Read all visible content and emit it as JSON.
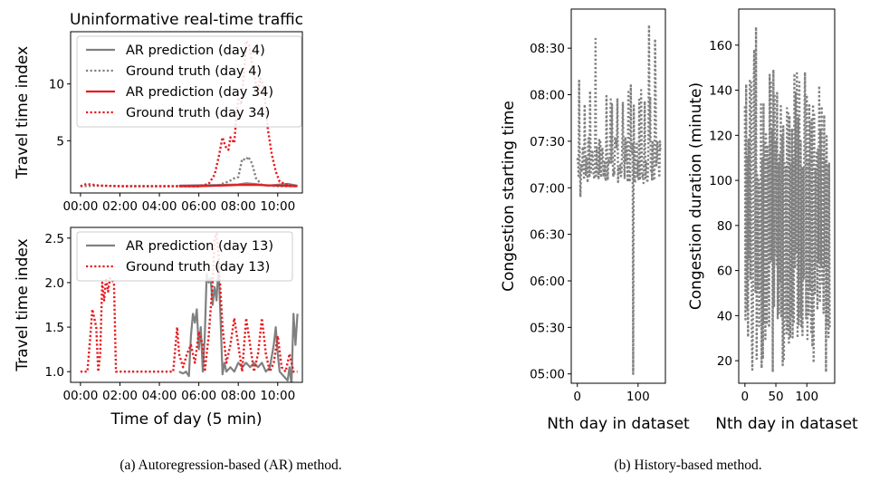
{
  "captions": {
    "a": "(a)  Autoregression-based (AR) method.",
    "b": "(b)  History-based method."
  },
  "colors": {
    "gray": "#808080",
    "red": "#e8191d"
  },
  "chart_data": [
    {
      "id": "top-left",
      "type": "line",
      "title": "Uninformative real-time traffic",
      "xlabel": "",
      "ylabel": "Travel time index",
      "xlim": [
        -0.5,
        11.25
      ],
      "ylim": [
        0.4,
        14.6
      ],
      "x_ticks": [
        0,
        2,
        4,
        6,
        8,
        10
      ],
      "x_tick_labels": [
        "00:00",
        "02:00",
        "04:00",
        "06:00",
        "08:00",
        "10:00"
      ],
      "y_ticks": [
        5,
        10
      ],
      "y_tick_labels": [
        "5",
        "10"
      ],
      "legend_position": "top-left",
      "series": [
        {
          "name": "AR prediction (day 4)",
          "color": "#808080",
          "style": "solid",
          "x_start": 5.0,
          "x_end": 11.0,
          "points": [
            [
              5.0,
              1.05
            ],
            [
              6.0,
              1.08
            ],
            [
              7.0,
              1.1
            ],
            [
              8.0,
              1.15
            ],
            [
              8.4,
              1.25
            ],
            [
              8.8,
              1.2
            ],
            [
              9.5,
              1.05
            ],
            [
              10.5,
              1.2
            ],
            [
              11.0,
              1.05
            ]
          ]
        },
        {
          "name": "Ground truth (day 4)",
          "color": "#808080",
          "style": "dotted",
          "points": [
            [
              0,
              1.0
            ],
            [
              1,
              1.05
            ],
            [
              2,
              1.0
            ],
            [
              4,
              1.0
            ],
            [
              6,
              1.0
            ],
            [
              7,
              1.1
            ],
            [
              7.5,
              1.4
            ],
            [
              7.8,
              1.7
            ],
            [
              8.0,
              1.8
            ],
            [
              8.2,
              3.4
            ],
            [
              8.4,
              3.3
            ],
            [
              8.5,
              3.6
            ],
            [
              8.7,
              3.0
            ],
            [
              8.9,
              1.7
            ],
            [
              9.2,
              1.1
            ],
            [
              10,
              1.0
            ],
            [
              11,
              1.0
            ]
          ]
        },
        {
          "name": "AR prediction (day 34)",
          "color": "#e8191d",
          "style": "solid",
          "points": [
            [
              5.0,
              1.0
            ],
            [
              6.0,
              1.0
            ],
            [
              7.0,
              1.05
            ],
            [
              8.0,
              1.1
            ],
            [
              9.0,
              1.1
            ],
            [
              10.0,
              1.05
            ],
            [
              11.0,
              1.0
            ]
          ]
        },
        {
          "name": "Ground truth (day 34)",
          "color": "#e8191d",
          "style": "dotted",
          "points": [
            [
              0,
              1.0
            ],
            [
              0.3,
              1.2
            ],
            [
              1,
              1.05
            ],
            [
              2,
              1.0
            ],
            [
              3,
              1.0
            ],
            [
              4,
              1.0
            ],
            [
              5,
              1.0
            ],
            [
              6.0,
              1.0
            ],
            [
              6.5,
              1.2
            ],
            [
              6.8,
              2.0
            ],
            [
              7.0,
              3.5
            ],
            [
              7.2,
              5.3
            ],
            [
              7.35,
              4.5
            ],
            [
              7.5,
              4.2
            ],
            [
              7.6,
              5.3
            ],
            [
              7.8,
              4.8
            ],
            [
              7.9,
              7.1
            ],
            [
              8.0,
              8.8
            ],
            [
              8.15,
              8.2
            ],
            [
              8.3,
              11.2
            ],
            [
              8.4,
              13.8
            ],
            [
              8.55,
              13.5
            ],
            [
              8.7,
              11.8
            ],
            [
              8.85,
              10.5
            ],
            [
              9.0,
              8.9
            ],
            [
              9.1,
              10.5
            ],
            [
              9.25,
              10.0
            ],
            [
              9.35,
              8.7
            ],
            [
              9.5,
              6.0
            ],
            [
              9.7,
              3.8
            ],
            [
              9.9,
              2.3
            ],
            [
              10.1,
              1.4
            ],
            [
              10.5,
              1.1
            ],
            [
              11.0,
              1.0
            ]
          ]
        }
      ]
    },
    {
      "id": "bottom-left",
      "type": "line",
      "xlabel": "Time of day (5 min)",
      "ylabel": "Travel time index",
      "xlim": [
        -0.5,
        11.25
      ],
      "ylim": [
        0.88,
        2.62
      ],
      "x_ticks": [
        0,
        2,
        4,
        6,
        8,
        10
      ],
      "x_tick_labels": [
        "00:00",
        "02:00",
        "04:00",
        "06:00",
        "08:00",
        "10:00"
      ],
      "y_ticks": [
        1.0,
        1.5,
        2.0,
        2.5
      ],
      "y_tick_labels": [
        "1.0",
        "1.5",
        "2.0",
        "2.5"
      ],
      "legend_position": "top-left",
      "series": [
        {
          "name": "AR prediction (day 13)",
          "color": "#808080",
          "style": "solid",
          "points": [
            [
              5.0,
              1.0
            ],
            [
              5.2,
              0.98
            ],
            [
              5.35,
              1.0
            ],
            [
              5.5,
              0.95
            ],
            [
              5.6,
              1.4
            ],
            [
              5.7,
              1.65
            ],
            [
              5.8,
              1.55
            ],
            [
              5.9,
              1.7
            ],
            [
              6.0,
              1.25
            ],
            [
              6.1,
              1.5
            ],
            [
              6.2,
              1.0
            ],
            [
              6.3,
              1.4
            ],
            [
              6.4,
              2.1
            ],
            [
              6.5,
              2.0
            ],
            [
              6.6,
              2.05
            ],
            [
              6.7,
              1.75
            ],
            [
              6.8,
              1.95
            ],
            [
              6.9,
              1.8
            ],
            [
              7.0,
              2.2
            ],
            [
              7.1,
              1.6
            ],
            [
              7.2,
              0.97
            ],
            [
              7.3,
              1.1
            ],
            [
              7.4,
              1.0
            ],
            [
              7.6,
              1.05
            ],
            [
              7.8,
              1.0
            ],
            [
              8.0,
              1.1
            ],
            [
              8.2,
              1.05
            ],
            [
              8.4,
              1.1
            ],
            [
              8.6,
              1.05
            ],
            [
              8.8,
              1.1
            ],
            [
              9.0,
              1.05
            ],
            [
              9.2,
              1.1
            ],
            [
              9.4,
              1.0
            ],
            [
              9.6,
              1.05
            ],
            [
              9.8,
              1.3
            ],
            [
              9.9,
              1.5
            ],
            [
              10.0,
              1.2
            ],
            [
              10.1,
              1.0
            ],
            [
              10.3,
              0.95
            ],
            [
              10.5,
              0.9
            ],
            [
              10.6,
              1.05
            ],
            [
              10.7,
              0.85
            ],
            [
              10.8,
              1.65
            ],
            [
              10.9,
              1.3
            ],
            [
              11.0,
              1.65
            ]
          ]
        },
        {
          "name": "Ground truth (day 13)",
          "color": "#e8191d",
          "style": "dotted",
          "points": [
            [
              0,
              1.0
            ],
            [
              0.35,
              1.0
            ],
            [
              0.5,
              1.4
            ],
            [
              0.6,
              1.7
            ],
            [
              0.8,
              1.5
            ],
            [
              0.9,
              1.0
            ],
            [
              1.0,
              1.2
            ],
            [
              1.1,
              2.0
            ],
            [
              1.2,
              1.8
            ],
            [
              1.3,
              2.05
            ],
            [
              1.4,
              1.9
            ],
            [
              1.5,
              2.05
            ],
            [
              1.7,
              2.0
            ],
            [
              1.8,
              1.0
            ],
            [
              2.0,
              1.0
            ],
            [
              3.0,
              1.0
            ],
            [
              4.0,
              1.0
            ],
            [
              4.7,
              1.0
            ],
            [
              4.9,
              1.5
            ],
            [
              5.0,
              1.2
            ],
            [
              5.2,
              1.05
            ],
            [
              5.4,
              1.2
            ],
            [
              5.6,
              1.3
            ],
            [
              5.8,
              1.1
            ],
            [
              6.0,
              1.45
            ],
            [
              6.2,
              1.3
            ],
            [
              6.3,
              1.0
            ],
            [
              6.5,
              1.4
            ],
            [
              6.7,
              2.0
            ],
            [
              6.8,
              2.5
            ],
            [
              6.9,
              2.55
            ],
            [
              7.0,
              2.3
            ],
            [
              7.2,
              1.5
            ],
            [
              7.4,
              1.1
            ],
            [
              7.6,
              1.3
            ],
            [
              7.8,
              1.6
            ],
            [
              8.0,
              1.3
            ],
            [
              8.2,
              1.0
            ],
            [
              8.4,
              1.6
            ],
            [
              8.6,
              1.3
            ],
            [
              8.8,
              1.0
            ],
            [
              9.0,
              1.2
            ],
            [
              9.2,
              1.6
            ],
            [
              9.4,
              1.2
            ],
            [
              9.6,
              1.0
            ],
            [
              9.8,
              1.1
            ],
            [
              10.0,
              1.4
            ],
            [
              10.2,
              1.05
            ],
            [
              10.4,
              1.0
            ],
            [
              10.6,
              1.2
            ],
            [
              10.8,
              1.0
            ],
            [
              11.0,
              1.0
            ]
          ]
        }
      ]
    },
    {
      "id": "middle",
      "type": "line",
      "xlabel": "Nth day in dataset",
      "ylabel": "Congestion starting time",
      "xlim": [
        -10,
        145
      ],
      "ylim": [
        4.9,
        8.92
      ],
      "x_ticks": [
        0,
        100
      ],
      "x_tick_labels": [
        "0",
        "100"
      ],
      "y_ticks": [
        5.0,
        5.5,
        6.0,
        6.5,
        7.0,
        7.5,
        8.0,
        8.5
      ],
      "y_tick_labels": [
        "05:00",
        "05:30",
        "06:00",
        "06:30",
        "07:00",
        "07:30",
        "08:00",
        "08:30"
      ],
      "series": [
        {
          "name": "",
          "color": "#808080",
          "style": "dotted",
          "generator": "start"
        }
      ]
    },
    {
      "id": "right",
      "type": "line",
      "xlabel": "Nth day in dataset",
      "ylabel": "Congestion duration (minute)",
      "xlim": [
        -10,
        145
      ],
      "ylim": [
        10,
        176
      ],
      "x_ticks": [
        0,
        50,
        100
      ],
      "x_tick_labels": [
        "0",
        "50",
        "100"
      ],
      "y_ticks": [
        20,
        40,
        60,
        80,
        100,
        120,
        140,
        160
      ],
      "y_tick_labels": [
        "20",
        "40",
        "60",
        "80",
        "100",
        "120",
        "140",
        "160"
      ],
      "series": [
        {
          "name": "",
          "color": "#808080",
          "style": "dotted",
          "generator": "duration"
        }
      ]
    }
  ]
}
